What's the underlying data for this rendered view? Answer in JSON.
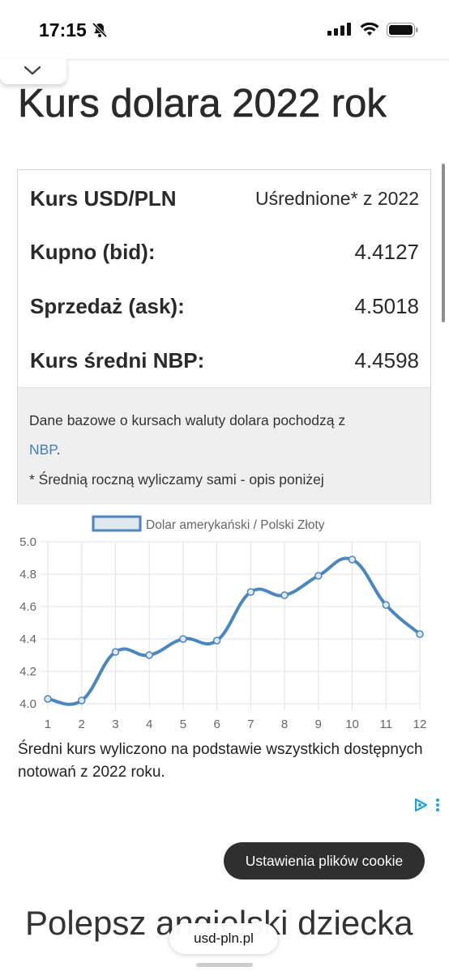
{
  "status_bar": {
    "time": "17:15"
  },
  "page": {
    "title": "Kurs dolara 2022 rok"
  },
  "rates_card": {
    "header_label": "Kurs USD/PLN",
    "header_value": "Uśrednione* z 2022",
    "rows": [
      {
        "label": "Kupno (bid):",
        "value": "4.4127"
      },
      {
        "label": "Sprzedaż (ask):",
        "value": "4.5018"
      },
      {
        "label": "Kurs średni NBP:",
        "value": "4.4598"
      }
    ],
    "note_text": "Dane bazowe o kursach waluty dolara pochodzą z",
    "note_link": "NBP",
    "note_link_suffix": ".",
    "footnote": "* Średnią roczną wyliczamy sami - opis poniżej"
  },
  "chart_data": {
    "type": "line",
    "x": [
      1,
      2,
      3,
      4,
      5,
      6,
      7,
      8,
      9,
      10,
      11,
      12
    ],
    "series": [
      {
        "name": "Dolar amerykański / Polski Złoty",
        "values": [
          4.03,
          4.02,
          4.32,
          4.3,
          4.4,
          4.39,
          4.69,
          4.67,
          4.79,
          4.89,
          4.61,
          4.43
        ]
      }
    ],
    "x_ticks": [
      "1",
      "2",
      "3",
      "4",
      "5",
      "6",
      "7",
      "8",
      "9",
      "10",
      "11",
      "12"
    ],
    "y_ticks": [
      "4.0",
      "4.2",
      "4.4",
      "4.6",
      "4.8",
      "5.0"
    ],
    "ylim": [
      4.0,
      5.0
    ],
    "grid": true,
    "legend": "top",
    "colors": {
      "line": "#4a86c0",
      "point_fill": "#dfe7ef",
      "grid": "#e3e3e3"
    }
  },
  "caption": "Średni kurs wyliczono na podstawie wszystkich dostępnych notowań z 2022 roku.",
  "cookie_button": "Ustawienia plików cookie",
  "promo_heading": "Polepsz angielski dziecka",
  "url_bar": "usd-pln.pl",
  "icons": [
    "silent-bell-icon",
    "signal-icon",
    "wifi-icon",
    "battery-icon",
    "chevron-down-icon",
    "ad-choices-icon",
    "more-vertical-icon"
  ]
}
